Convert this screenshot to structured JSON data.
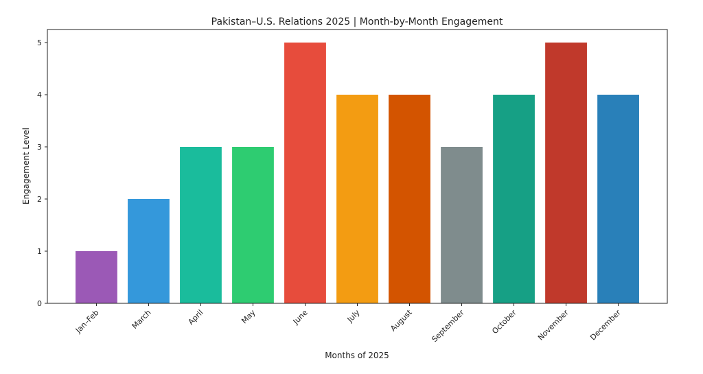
{
  "chart_data": {
    "type": "bar",
    "title": "Pakistan–U.S. Relations 2025 | Month-by-Month Engagement",
    "xlabel": "Months of 2025",
    "ylabel": "Engagement Level",
    "categories": [
      "Jan–Feb",
      "March",
      "April",
      "May",
      "June",
      "July",
      "August",
      "September",
      "October",
      "November",
      "December"
    ],
    "values": [
      1,
      2,
      3,
      3,
      5,
      4,
      4,
      3,
      4,
      5,
      4
    ],
    "colors": [
      "#9b59b6",
      "#3498db",
      "#1abc9c",
      "#2ecc71",
      "#e74c3c",
      "#f39c12",
      "#d35400",
      "#7f8c8d",
      "#16a085",
      "#c0392b",
      "#2980b9"
    ],
    "ylim": [
      0,
      5.25
    ],
    "yticks": [
      0,
      1,
      2,
      3,
      4,
      5
    ],
    "grid": false
  }
}
